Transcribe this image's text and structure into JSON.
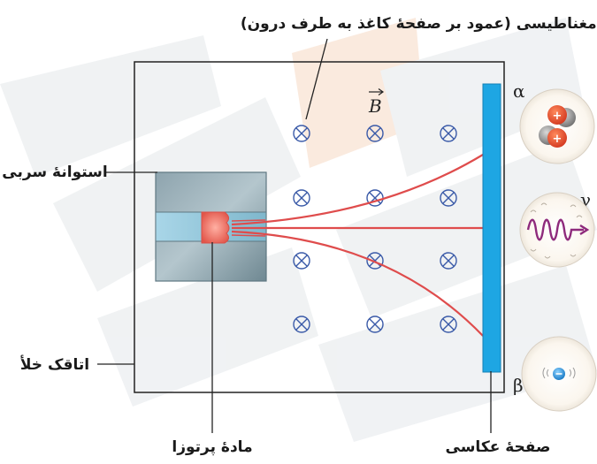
{
  "diagram": {
    "labels": {
      "magnetic_field": "میدان مغناطیسی (عمود بر صفحهٔ کاغذ به طرف درون)",
      "lead_cylinder": "استوانهٔ سربی",
      "vacuum_chamber": "اتاقک خلأ",
      "radioactive_material": "مادهٔ پرتوزا",
      "photographic_plate": "صفحهٔ عکاسی",
      "field_symbol": "B"
    },
    "radiation": {
      "alpha": "α",
      "gamma": "γ",
      "beta": "β",
      "beta_sign": "−",
      "alpha_particle_charge": "+"
    },
    "field_symbol_glyph": "⊗",
    "colors": {
      "beam": "#e04a4a",
      "plate": "#1ea6e3",
      "lead": "#7a939f",
      "source": "#e8685a",
      "watermark": "#e8ecee"
    }
  }
}
